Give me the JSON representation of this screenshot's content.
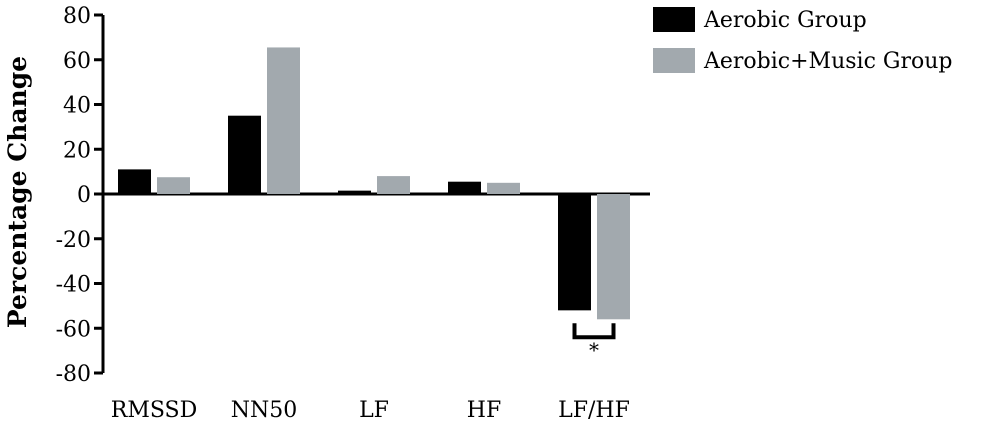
{
  "chart_data": {
    "type": "bar",
    "title": "",
    "xlabel": "",
    "ylabel": "Percentage Change",
    "ylim": [
      -80,
      80
    ],
    "yticks": [
      80,
      60,
      40,
      20,
      0,
      -20,
      -40,
      -60,
      -80
    ],
    "categories": [
      "RMSSD",
      "NN50",
      "LF",
      "HF",
      "LF/HF"
    ],
    "series": [
      {
        "name": "Aerobic Group",
        "color": "#000000",
        "values": [
          11,
          35,
          1.5,
          5.5,
          -52
        ]
      },
      {
        "name": "Aerobic+Music Group",
        "color": "#a2a9ae",
        "values": [
          7.5,
          65.5,
          8,
          5,
          -56
        ]
      }
    ],
    "legend_position": "top-right",
    "grid": false,
    "annotations": [
      {
        "category": "LF/HF",
        "text": "*"
      }
    ]
  }
}
